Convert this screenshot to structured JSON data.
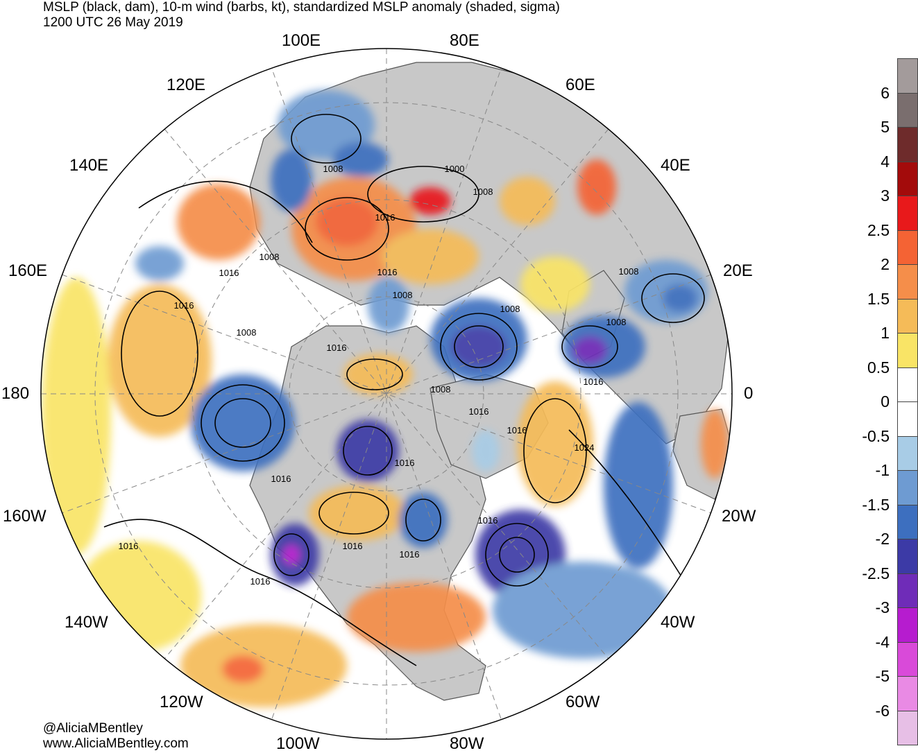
{
  "title": {
    "line1": "MSLP (black, dam), 10-m wind (barbs, kt), standardized MSLP anomaly (shaded, sigma)",
    "line2": "1200 UTC 26 May 2019"
  },
  "credits": {
    "handle": "@AliciaMBentley",
    "site": "www.AliciaMBentley.com"
  },
  "longitude_labels": [
    "100E",
    "80E",
    "120E",
    "60E",
    "140E",
    "40E",
    "160E",
    "20E",
    "180",
    "0",
    "160W",
    "20W",
    "140W",
    "40W",
    "120W",
    "60W",
    "100W",
    "80W"
  ],
  "isobar_labels": [
    "1008",
    "1000",
    "1008",
    "1016",
    "1008",
    "1016",
    "1016",
    "1008",
    "1008",
    "1008",
    "1008",
    "1016",
    "1016",
    "1008",
    "1008",
    "1016",
    "1016",
    "1024",
    "1016",
    "1016",
    "1016",
    "1016",
    "1016",
    "1016",
    "1016",
    "1016"
  ],
  "colorbar": {
    "labels": [
      "6",
      "5",
      "4",
      "3",
      "2.5",
      "2",
      "1.5",
      "1",
      "0.5",
      "0",
      "-0.5",
      "-1",
      "-1.5",
      "-2",
      "-2.5",
      "-3",
      "-4",
      "-5",
      "-6"
    ],
    "colors": [
      "#a39b9b",
      "#7a6e6e",
      "#6e2b2b",
      "#a30b0b",
      "#e8191b",
      "#f46334",
      "#f58e4a",
      "#f5bb58",
      "#f9e466",
      "#ffffff",
      "#ffffff",
      "#a8cce6",
      "#6e9bd2",
      "#3d6fbf",
      "#3c3aa6",
      "#6f2cb8",
      "#b61ccf",
      "#d94ad9",
      "#e98ae4",
      "#e7bfe6"
    ]
  },
  "colors": {
    "land": "#c8c8c8",
    "ocean": "#ffffff",
    "coast": "#555555",
    "isobar": "#000000"
  }
}
